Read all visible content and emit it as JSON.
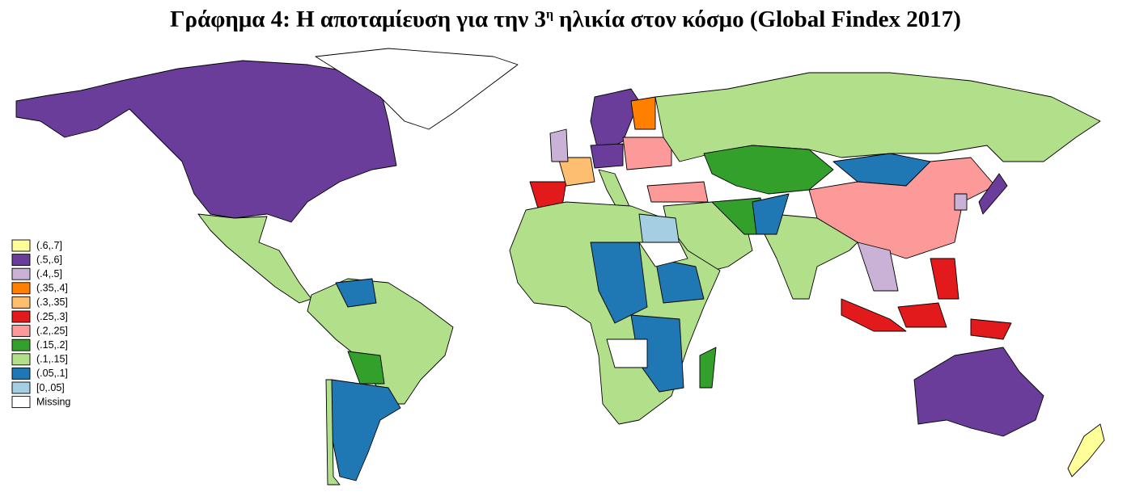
{
  "header": {
    "title_parts": [
      "Γράφημα 4: Η αποταμίευση για την 3",
      "η",
      "ηλικία στον κόσμο (Global Findex 2017)"
    ]
  },
  "legend": {
    "items": [
      {
        "label": "(.6,.7]",
        "color": "#ffff99"
      },
      {
        "label": "(.5,.6]",
        "color": "#6a3d9a"
      },
      {
        "label": "(.4,.5]",
        "color": "#cab2d6"
      },
      {
        "label": "(.35,.4]",
        "color": "#ff7f00"
      },
      {
        "label": "(.3,.35]",
        "color": "#fdbf6f"
      },
      {
        "label": "(.25,.3]",
        "color": "#e31a1c"
      },
      {
        "label": "(.2,.25]",
        "color": "#fb9a99"
      },
      {
        "label": "(.15,.2]",
        "color": "#33a02c"
      },
      {
        "label": "(.1,.15]",
        "color": "#b2df8a"
      },
      {
        "label": "(.05,.1]",
        "color": "#1f78b4"
      },
      {
        "label": "[0,.05]",
        "color": "#a6cee3"
      },
      {
        "label": "Missing",
        "color": "#ffffff"
      }
    ]
  }
}
